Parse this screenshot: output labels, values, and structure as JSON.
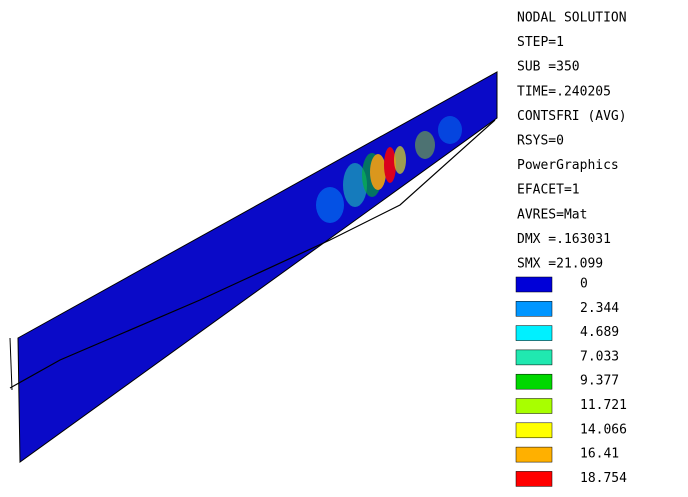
{
  "info": [
    "NODAL SOLUTION",
    "STEP=1",
    "SUB =350",
    "TIME=.240205",
    "CONTSFRI (AVG)",
    "RSYS=0",
    "PowerGraphics",
    "EFACET=1",
    "AVRES=Mat",
    "DMX =.163031",
    "SMX =21.099"
  ],
  "legend": [
    {
      "label": "0",
      "color": "#0000d8"
    },
    {
      "label": "2.344",
      "color": "#0096ff"
    },
    {
      "label": "4.689",
      "color": "#00f0ff"
    },
    {
      "label": "7.033",
      "color": "#20e8b0"
    },
    {
      "label": "9.377",
      "color": "#00d800"
    },
    {
      "label": "11.721",
      "color": "#a8ff00"
    },
    {
      "label": "14.066",
      "color": "#ffff00"
    },
    {
      "label": "16.41",
      "color": "#ffb000"
    },
    {
      "label": "18.754",
      "color": "#ff0000"
    }
  ]
}
